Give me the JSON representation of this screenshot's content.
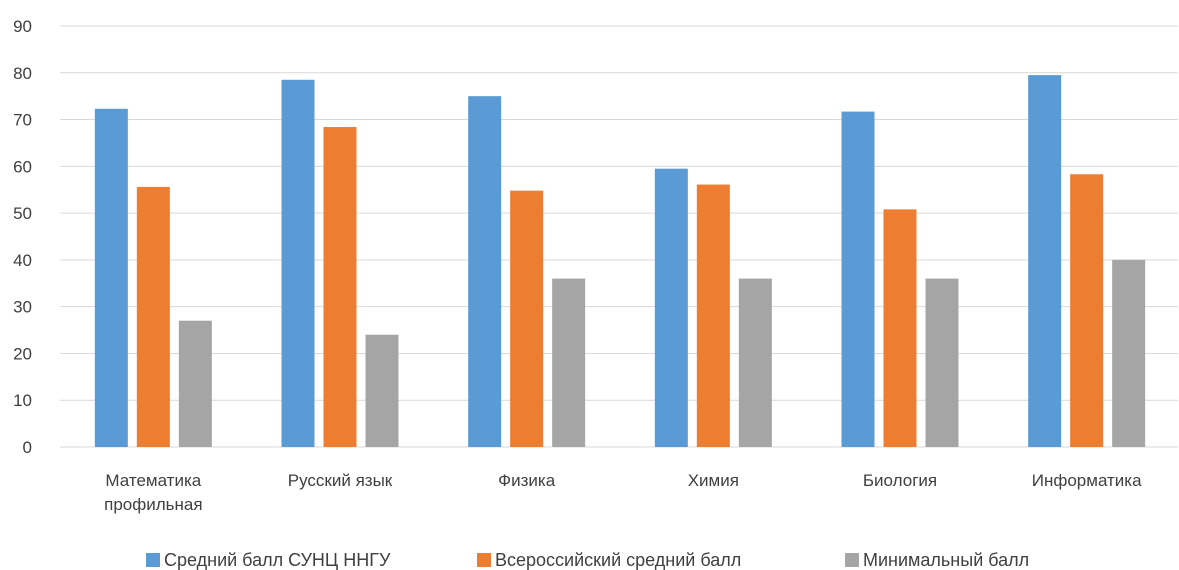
{
  "chart_data": {
    "type": "bar",
    "categories": [
      [
        "Математика",
        "профильная"
      ],
      [
        "Русский язык"
      ],
      [
        "Физика"
      ],
      [
        "Химия"
      ],
      [
        "Биология"
      ],
      [
        "Информатика"
      ]
    ],
    "series": [
      {
        "name": "Средний балл СУНЦ ННГУ",
        "color": "#5B9BD5",
        "values": [
          72.3,
          78.5,
          75.0,
          59.5,
          71.7,
          79.5
        ]
      },
      {
        "name": "Всероссийский средний балл",
        "color": "#ED7D31",
        "values": [
          55.6,
          68.4,
          54.8,
          56.1,
          50.8,
          58.3
        ]
      },
      {
        "name": "Минимальный балл",
        "color": "#A5A5A5",
        "values": [
          27,
          24,
          36,
          36,
          36,
          40
        ]
      }
    ],
    "ylim": [
      0,
      90
    ],
    "yticks": [
      0,
      10,
      20,
      30,
      40,
      50,
      60,
      70,
      80,
      90
    ],
    "grid": true,
    "legend_position": "bottom"
  }
}
